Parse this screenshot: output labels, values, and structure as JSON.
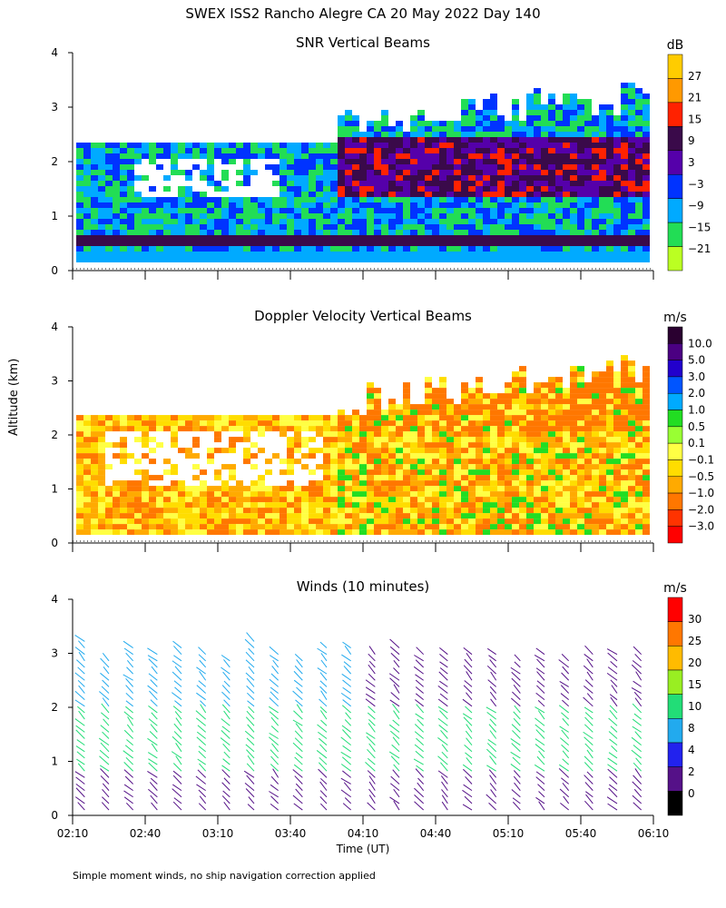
{
  "figure_title": "SWEX ISS2 Rancho Alegre CA  20 May 2022 Day 140",
  "y_axis_label": "Altitude (km)",
  "x_axis_label": "Time (UT)",
  "footnote": "Simple moment winds, no ship navigation correction applied",
  "chart_data": [
    {
      "type": "heatmap",
      "title": "SNR Vertical Beams",
      "xlabel": "",
      "ylabel": "Altitude (km)",
      "x_ticks": [
        "",
        "",
        "",
        "",
        "",
        "",
        "",
        "",
        ""
      ],
      "y_ticks": [
        "0",
        "1",
        "2",
        "3",
        "4"
      ],
      "xlim_minutes_utc": [
        130,
        370
      ],
      "ylim_km": [
        0,
        4
      ],
      "colorbar": {
        "unit": "dB",
        "labels": [
          "27",
          "21",
          "15",
          "9",
          "3",
          "−3",
          "−9",
          "−15",
          "−21"
        ],
        "colors": [
          "#ffcc00",
          "#ff9900",
          "#ff2200",
          "#3a0a4a",
          "#5500aa",
          "#0033ff",
          "#00aaff",
          "#22dd55",
          "#bbff22"
        ]
      }
    },
    {
      "type": "heatmap",
      "title": "Doppler Velocity Vertical Beams",
      "xlabel": "",
      "ylabel": "Altitude (km)",
      "x_ticks": [
        "",
        "",
        "",
        "",
        "",
        "",
        "",
        "",
        ""
      ],
      "y_ticks": [
        "0",
        "1",
        "2",
        "3",
        "4"
      ],
      "xlim_minutes_utc": [
        130,
        370
      ],
      "ylim_km": [
        0,
        4
      ],
      "colorbar": {
        "unit": "m/s",
        "labels": [
          "10.0",
          "5.0",
          "3.0",
          "2.0",
          "1.0",
          "0.5",
          "0.1",
          "−0.1",
          "−0.5",
          "−1.0",
          "−2.0",
          "−3.0"
        ],
        "colors": [
          "#2a0030",
          "#4b0082",
          "#2200cc",
          "#0055ff",
          "#00aaff",
          "#22dd22",
          "#99ff33",
          "#ffff44",
          "#ffdd00",
          "#ffaa00",
          "#ff7700",
          "#ff3300",
          "#ff0000"
        ]
      }
    },
    {
      "type": "wind-barbs",
      "title": "Winds (10 minutes)",
      "xlabel": "Time (UT)",
      "ylabel": "Altitude (km)",
      "x_ticks": [
        "02:10",
        "02:40",
        "03:10",
        "03:40",
        "04:10",
        "04:40",
        "05:10",
        "05:40",
        "06:10"
      ],
      "y_ticks": [
        "0",
        "1",
        "2",
        "3",
        "4"
      ],
      "xlim_minutes_utc": [
        130,
        370
      ],
      "ylim_km": [
        0,
        4
      ],
      "profile_interval_minutes": 10,
      "colorbar": {
        "unit": "m/s",
        "labels": [
          "30",
          "25",
          "20",
          "15",
          "10",
          "8",
          "4",
          "2",
          "0"
        ],
        "colors": [
          "#ff0000",
          "#ff7700",
          "#ffbb00",
          "#99ee22",
          "#22dd77",
          "#22aaee",
          "#2222ee",
          "#551188",
          "#000000"
        ]
      }
    }
  ]
}
